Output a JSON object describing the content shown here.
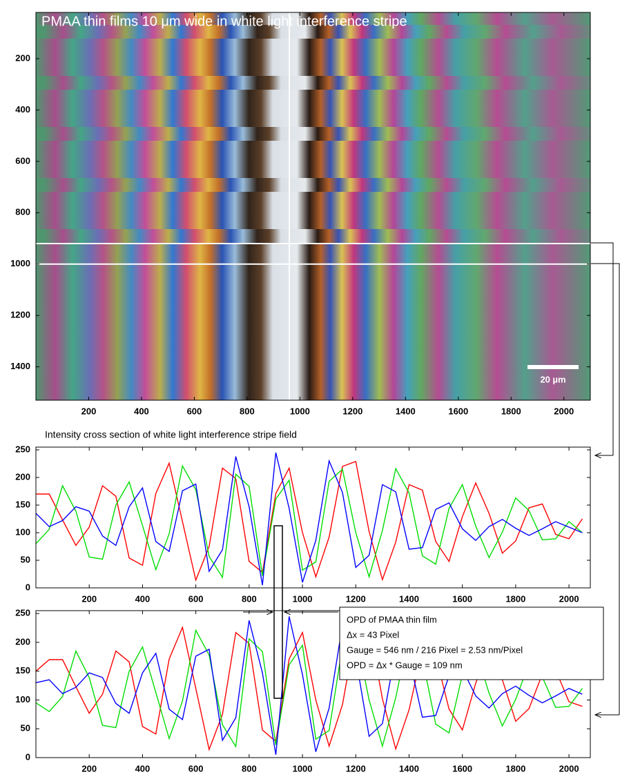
{
  "chart_data": [
    {
      "type": "image",
      "title": "PMAA thin films 10 μm wide in white light interference stripe",
      "scale_bar": "20 µm",
      "xlim": [
        0,
        2100
      ],
      "ylim": [
        20,
        1530
      ],
      "xticks": [
        200,
        400,
        600,
        800,
        1000,
        1200,
        1400,
        1600,
        1800,
        2000
      ],
      "yticks": [
        200,
        400,
        600,
        800,
        1000,
        1200,
        1400
      ],
      "hlines": [
        920,
        1000
      ],
      "vline": 960
    },
    {
      "type": "line",
      "title": "Intensity cross section of white light interference stripe field",
      "xlim": [
        0,
        2080
      ],
      "ylim": [
        0,
        255
      ],
      "xticks": [
        200,
        400,
        600,
        800,
        1000,
        1200,
        1400,
        1600,
        1800,
        2000
      ],
      "yticks": [
        0,
        50,
        100,
        150,
        200,
        250
      ],
      "x": [
        0,
        50,
        100,
        150,
        200,
        250,
        300,
        350,
        400,
        450,
        500,
        550,
        600,
        650,
        700,
        750,
        800,
        850,
        900,
        950,
        1000,
        1050,
        1100,
        1150,
        1200,
        1250,
        1300,
        1350,
        1400,
        1450,
        1500,
        1550,
        1600,
        1650,
        1700,
        1750,
        1800,
        1850,
        1900,
        1950,
        2000,
        2050
      ],
      "series": [
        {
          "color": "#ff0000",
          "values": [
            170,
            170,
            123,
            77,
            110,
            185,
            166,
            54,
            41,
            171,
            226,
            120,
            14,
            75,
            217,
            198,
            48,
            28,
            171,
            217,
            100,
            20,
            92,
            220,
            229,
            102,
            15,
            83,
            187,
            177,
            84,
            48,
            129,
            190,
            135,
            63,
            85,
            145,
            152,
            97,
            89,
            125
          ]
        },
        {
          "color": "#00dd00",
          "values": [
            80,
            106,
            185,
            139,
            56,
            52,
            150,
            192,
            113,
            33,
            98,
            221,
            178,
            57,
            19,
            206,
            184,
            22,
            161,
            195,
            32,
            47,
            193,
            215,
            100,
            20,
            104,
            216,
            172,
            58,
            43,
            144,
            187,
            112,
            55,
            101,
            163,
            140,
            87,
            89,
            120,
            100
          ]
        },
        {
          "color": "#0000ff",
          "values": [
            135,
            111,
            122,
            147,
            139,
            94,
            77,
            147,
            181,
            84,
            66,
            176,
            188,
            30,
            69,
            238,
            147,
            5,
            245,
            144,
            10,
            86,
            230,
            173,
            37,
            59,
            187,
            174,
            70,
            73,
            142,
            154,
            107,
            86,
            111,
            124,
            108,
            95,
            107,
            120,
            110,
            100
          ]
        }
      ]
    },
    {
      "type": "line",
      "xlim": [
        0,
        2080
      ],
      "ylim": [
        0,
        255
      ],
      "xticks": [
        200,
        400,
        600,
        800,
        1000,
        1200,
        1400,
        1600,
        1800,
        2000
      ],
      "yticks": [
        0,
        50,
        100,
        150,
        200,
        250
      ],
      "x": [
        0,
        50,
        100,
        150,
        200,
        250,
        300,
        350,
        400,
        450,
        500,
        550,
        600,
        650,
        700,
        750,
        800,
        850,
        900,
        950,
        1000,
        1050,
        1100,
        1150,
        1200,
        1250,
        1300,
        1350,
        1400,
        1450,
        1500,
        1550,
        1600,
        1650,
        1700,
        1750,
        1800,
        1850,
        1900,
        1950,
        2000,
        2050
      ],
      "series": [
        {
          "color": "#ff0000",
          "values": [
            150,
            170,
            170,
            123,
            77,
            110,
            185,
            166,
            54,
            41,
            171,
            226,
            120,
            14,
            75,
            217,
            198,
            48,
            28,
            171,
            217,
            100,
            20,
            92,
            220,
            229,
            102,
            15,
            83,
            187,
            177,
            84,
            48,
            129,
            190,
            135,
            63,
            85,
            145,
            152,
            97,
            89
          ]
        },
        {
          "color": "#00dd00",
          "values": [
            95,
            80,
            106,
            185,
            139,
            56,
            52,
            150,
            192,
            113,
            33,
            98,
            221,
            178,
            57,
            19,
            206,
            184,
            22,
            161,
            195,
            32,
            47,
            193,
            215,
            100,
            20,
            104,
            216,
            172,
            58,
            43,
            144,
            187,
            112,
            55,
            101,
            163,
            140,
            87,
            89,
            120
          ]
        },
        {
          "color": "#0000ff",
          "values": [
            130,
            135,
            111,
            122,
            147,
            139,
            94,
            77,
            147,
            181,
            84,
            66,
            176,
            188,
            30,
            69,
            238,
            147,
            5,
            245,
            144,
            10,
            86,
            230,
            173,
            37,
            59,
            187,
            174,
            70,
            73,
            142,
            154,
            107,
            86,
            111,
            124,
            108,
            95,
            107,
            120,
            110
          ]
        }
      ],
      "annotation": [
        "OPD of PMAA thin film",
        "Δx = 43 Pixel",
        "Gauge = 546 nm / 216 Pixel = 2.53 nm/Pixel",
        "OPD = Δx * Gauge = 109 nm"
      ]
    }
  ]
}
